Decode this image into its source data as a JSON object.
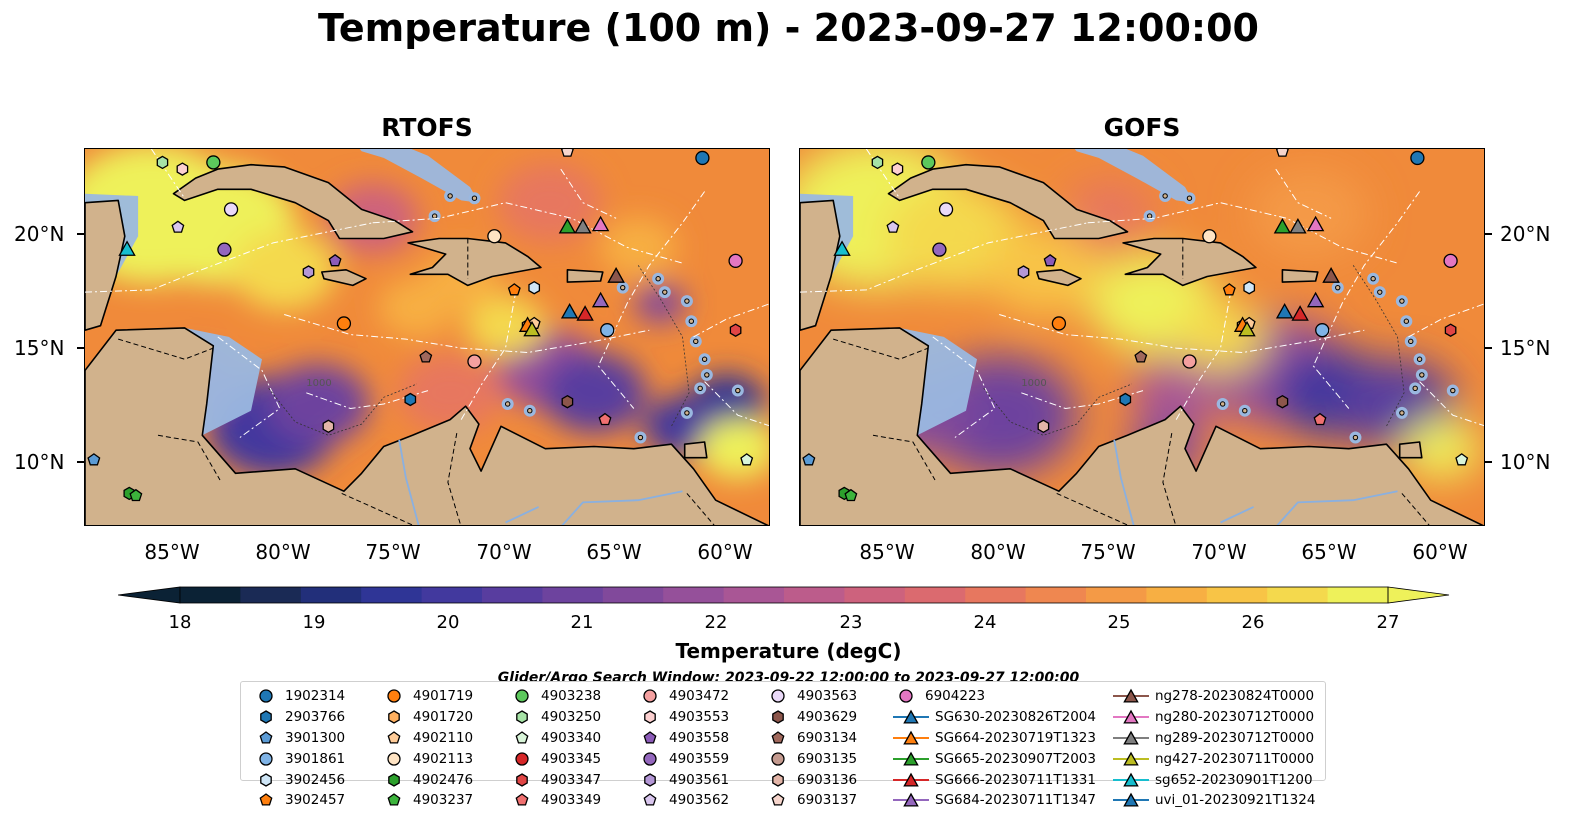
{
  "title": "Temperature (100 m) - 2023-09-27 12:00:00",
  "panels": [
    {
      "title": "RTOFS"
    },
    {
      "title": "GOFS"
    }
  ],
  "axes": {
    "lat_ticks": [
      "20°N",
      "15°N",
      "10°N"
    ],
    "lon_ticks": [
      "85°W",
      "80°W",
      "75°W",
      "70°W",
      "65°W",
      "60°W"
    ]
  },
  "map_labels": {
    "isobath": "1000"
  },
  "colorbar": {
    "label": "Temperature (degC)",
    "ticks": [
      "18",
      "19",
      "20",
      "21",
      "22",
      "23",
      "24",
      "25",
      "26",
      "27"
    ],
    "colors": [
      "#0b2235",
      "#1a2a55",
      "#222f7a",
      "#2f3596",
      "#42399e",
      "#583d9f",
      "#6d439e",
      "#81499b",
      "#95509a",
      "#a95695",
      "#bc5c8b",
      "#cd627d",
      "#db6a6f",
      "#e7775f",
      "#ef8750",
      "#f49a46",
      "#f7af43",
      "#f8c446",
      "#f4d94d",
      "#eef15a"
    ],
    "cmap": "thermal"
  },
  "search_window": "Glider/Argo Search Window: 2023-09-22 12:00:00 to 2023-09-27 12:00:00",
  "legend": {
    "columns": [
      [
        {
          "label": "1902314",
          "marker": "circle",
          "color": "#1f77b4"
        },
        {
          "label": "2903766",
          "marker": "hexagon",
          "color": "#1f77b4"
        },
        {
          "label": "3901300",
          "marker": "pentagon",
          "color": "#5b9bd5"
        },
        {
          "label": "3901861",
          "marker": "circle",
          "color": "#7fb3e6"
        },
        {
          "label": "3902456",
          "marker": "hexagon",
          "color": "#cfe6f7"
        },
        {
          "label": "3902457",
          "marker": "pentagon",
          "color": "#ff7f0e"
        }
      ],
      [
        {
          "label": "4901719",
          "marker": "circle",
          "color": "#ff7f0e"
        },
        {
          "label": "4901720",
          "marker": "hexagon",
          "color": "#ffb060"
        },
        {
          "label": "4902110",
          "marker": "pentagon",
          "color": "#ffcc99"
        },
        {
          "label": "4902113",
          "marker": "circle",
          "color": "#ffe4c4"
        },
        {
          "label": "4902476",
          "marker": "hexagon",
          "color": "#2ca02c"
        },
        {
          "label": "4903237",
          "marker": "pentagon",
          "color": "#3cb43c"
        }
      ],
      [
        {
          "label": "4903238",
          "marker": "circle",
          "color": "#5cc85c"
        },
        {
          "label": "4903250",
          "marker": "hexagon",
          "color": "#a6e3a6"
        },
        {
          "label": "4903340",
          "marker": "pentagon",
          "color": "#d9f5d9"
        },
        {
          "label": "4903345",
          "marker": "circle",
          "color": "#d62728"
        },
        {
          "label": "4903347",
          "marker": "hexagon",
          "color": "#e04545"
        },
        {
          "label": "4903349",
          "marker": "pentagon",
          "color": "#f07070"
        }
      ],
      [
        {
          "label": "4903472",
          "marker": "circle",
          "color": "#f4a0a0"
        },
        {
          "label": "4903553",
          "marker": "hexagon",
          "color": "#fcd0d0"
        },
        {
          "label": "4903558",
          "marker": "pentagon",
          "color": "#8c5bb8"
        },
        {
          "label": "4903559",
          "marker": "circle",
          "color": "#9467bd"
        },
        {
          "label": "4903561",
          "marker": "hexagon",
          "color": "#b497d6"
        },
        {
          "label": "4903562",
          "marker": "pentagon",
          "color": "#d9c6ee"
        }
      ],
      [
        {
          "label": "4903563",
          "marker": "circle",
          "color": "#ead9f8"
        },
        {
          "label": "4903629",
          "marker": "hexagon",
          "color": "#8c564b"
        },
        {
          "label": "6903134",
          "marker": "pentagon",
          "color": "#a0685c"
        },
        {
          "label": "6903135",
          "marker": "circle",
          "color": "#c49a8f"
        },
        {
          "label": "6903136",
          "marker": "hexagon",
          "color": "#e3b5a8"
        },
        {
          "label": "6903137",
          "marker": "pentagon",
          "color": "#f6d5cc"
        }
      ],
      [
        {
          "label": "6904223",
          "marker": "circle",
          "color": "#e377c2"
        },
        {
          "label": "SG630-20230826T2004",
          "marker": "triangle-line",
          "color": "#1f77b4"
        },
        {
          "label": "SG664-20230719T1323",
          "marker": "triangle-line",
          "color": "#ff7f0e"
        },
        {
          "label": "SG665-20230907T2003",
          "marker": "triangle-line",
          "color": "#2ca02c"
        },
        {
          "label": "SG666-20230711T1331",
          "marker": "triangle-line",
          "color": "#d62728"
        },
        {
          "label": "SG684-20230711T1347",
          "marker": "triangle-line",
          "color": "#9467bd"
        }
      ],
      [
        {
          "label": "ng278-20230824T0000",
          "marker": "triangle-line",
          "color": "#8c564b"
        },
        {
          "label": "ng280-20230712T0000",
          "marker": "triangle-line",
          "color": "#e377c2"
        },
        {
          "label": "ng289-20230712T0000",
          "marker": "triangle-line",
          "color": "#7f7f7f"
        },
        {
          "label": "ng427-20230711T0000",
          "marker": "triangle-line",
          "color": "#bcbd22"
        },
        {
          "label": "sg652-20230901T1200",
          "marker": "triangle-line",
          "color": "#17becf"
        },
        {
          "label": "uvi_01-20230921T1324",
          "marker": "triangle-line",
          "color": "#1f77b4"
        }
      ]
    ]
  },
  "platform_positions": [
    {
      "id": "1902314",
      "lon": -61.1,
      "lat": 23.5
    },
    {
      "id": "2903766",
      "lon": -74.3,
      "lat": 12.7
    },
    {
      "id": "3901300",
      "lon": -88.6,
      "lat": 10.0
    },
    {
      "id": "3901861",
      "lon": -65.4,
      "lat": 15.8
    },
    {
      "id": "3902456",
      "lon": -68.7,
      "lat": 17.7
    },
    {
      "id": "3902457",
      "lon": -69.6,
      "lat": 17.6
    },
    {
      "id": "4901719",
      "lon": -77.3,
      "lat": 16.1
    },
    {
      "id": "4901720",
      "lon": -69.0,
      "lat": 16.0
    },
    {
      "id": "4902110",
      "lon": -68.7,
      "lat": 16.1
    },
    {
      "id": "4902113",
      "lon": -70.5,
      "lat": 20.0
    },
    {
      "id": "4902476",
      "lon": -87.0,
      "lat": 8.5
    },
    {
      "id": "4903237",
      "lon": -86.7,
      "lat": 8.4
    },
    {
      "id": "4903238",
      "lon": -83.2,
      "lat": 23.3
    },
    {
      "id": "4903250",
      "lon": -85.5,
      "lat": 23.3
    },
    {
      "id": "4903340",
      "lon": -59.1,
      "lat": 10.0
    },
    {
      "id": "4903347",
      "lon": -59.6,
      "lat": 15.8
    },
    {
      "id": "4903349",
      "lon": -65.5,
      "lat": 11.8
    },
    {
      "id": "4903472",
      "lon": -71.4,
      "lat": 14.4
    },
    {
      "id": "4903553",
      "lon": -84.6,
      "lat": 23.0
    },
    {
      "id": "4903558",
      "lon": -77.7,
      "lat": 18.9
    },
    {
      "id": "4903559",
      "lon": -82.7,
      "lat": 19.4
    },
    {
      "id": "4903561",
      "lon": -78.9,
      "lat": 18.4
    },
    {
      "id": "4903562",
      "lon": -84.8,
      "lat": 20.4
    },
    {
      "id": "4903563",
      "lon": -82.4,
      "lat": 21.2
    },
    {
      "id": "4903629",
      "lon": -67.2,
      "lat": 12.6
    },
    {
      "id": "6903134",
      "lon": -73.6,
      "lat": 14.6
    },
    {
      "id": "6903136",
      "lon": -78.0,
      "lat": 11.5
    },
    {
      "id": "6903137",
      "lon": -67.2,
      "lat": 23.8
    },
    {
      "id": "6904223",
      "lon": -59.6,
      "lat": 18.9
    },
    {
      "id": "SG630-20230826T2004",
      "lon": -65.0,
      "lat": 18.2
    },
    {
      "id": "SG664-20230719T1323",
      "lon": -69.0,
      "lat": 16.0
    },
    {
      "id": "SG665-20230907T2003",
      "lon": -67.2,
      "lat": 20.4
    },
    {
      "id": "SG666-20230711T1331",
      "lon": -66.4,
      "lat": 16.5
    },
    {
      "id": "SG684-20230711T1347",
      "lon": -65.7,
      "lat": 17.1
    },
    {
      "id": "ng278-20230824T0000",
      "lon": -65.0,
      "lat": 18.2
    },
    {
      "id": "ng280-20230712T0000",
      "lon": -65.7,
      "lat": 20.5
    },
    {
      "id": "ng289-20230712T0000",
      "lon": -66.5,
      "lat": 20.4
    },
    {
      "id": "ng427-20230711T0000",
      "lon": -68.8,
      "lat": 15.8
    },
    {
      "id": "sg652-20230901T1200",
      "lon": -87.1,
      "lat": 19.4
    },
    {
      "id": "uvi_01-20230921T1324",
      "lon": -67.1,
      "lat": 16.6
    }
  ]
}
